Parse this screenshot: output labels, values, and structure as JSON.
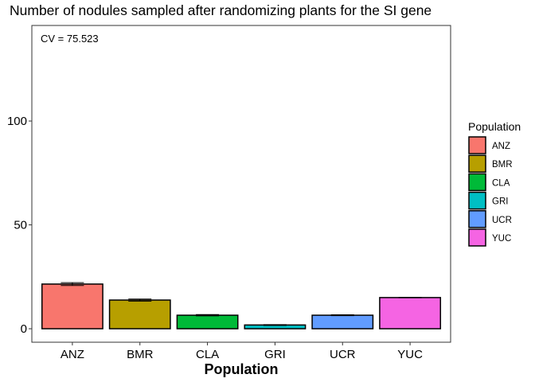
{
  "chart_data": {
    "type": "bar",
    "title": "Number of nodules sampled after randomizing plants for the SI gene",
    "annotation": "CV = 75.523",
    "xlabel": "Population",
    "ylabel": "",
    "categories": [
      "ANZ",
      "BMR",
      "CLA",
      "GRI",
      "UCR",
      "YUC"
    ],
    "values": [
      21.5,
      13.8,
      6.5,
      1.8,
      6.5,
      15.0
    ],
    "error_low": [
      20.8,
      13.3,
      6.2,
      1.6,
      6.3,
      14.9
    ],
    "error_high": [
      22.2,
      14.3,
      6.8,
      2.0,
      6.7,
      15.1
    ],
    "colors": [
      "#F8766D",
      "#B79F00",
      "#00BA38",
      "#00BFC4",
      "#619CFF",
      "#F564E3"
    ],
    "ylim": [
      -6.5,
      146
    ],
    "yticks": [
      0,
      50,
      100
    ],
    "grid": false,
    "legend": {
      "title": "Population",
      "placement": "right",
      "entries": [
        "ANZ",
        "BMR",
        "CLA",
        "GRI",
        "UCR",
        "YUC"
      ]
    }
  }
}
